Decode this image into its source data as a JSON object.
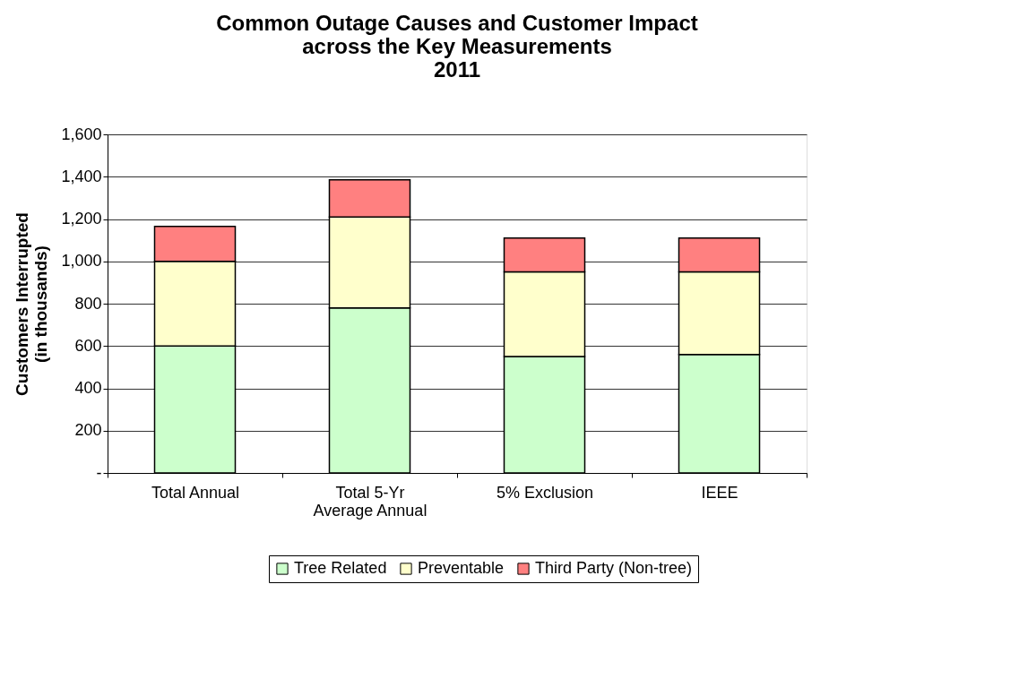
{
  "chart_data": {
    "type": "bar",
    "title": "Common Outage Causes and Customer Impact\nacross the Key Measurements\n2011",
    "ylabel": "Customers Interrupted\n(in thousands)",
    "categories": [
      "Total Annual",
      "Total 5-Yr\nAverage Annual",
      "5% Exclusion",
      "IEEE"
    ],
    "series": [
      {
        "name": "Tree Related",
        "color": "#ccffcc",
        "values": [
          600,
          780,
          550,
          560
        ]
      },
      {
        "name": "Preventable",
        "color": "#ffffcc",
        "values": [
          400,
          430,
          400,
          390
        ]
      },
      {
        "name": "Third Party (Non-tree)",
        "color": "#ff8080",
        "values": [
          165,
          175,
          160,
          160
        ]
      }
    ],
    "stacked": true,
    "ylim": [
      0,
      1600
    ],
    "yticks": [
      {
        "value": 0,
        "label": "-"
      },
      {
        "value": 200,
        "label": "200"
      },
      {
        "value": 400,
        "label": "400"
      },
      {
        "value": 600,
        "label": "600"
      },
      {
        "value": 800,
        "label": "800"
      },
      {
        "value": 1000,
        "label": "1,000"
      },
      {
        "value": 1200,
        "label": "1,200"
      },
      {
        "value": 1400,
        "label": "1,400"
      },
      {
        "value": 1600,
        "label": "1,600"
      }
    ],
    "grid": "y",
    "legend": "bottom"
  }
}
